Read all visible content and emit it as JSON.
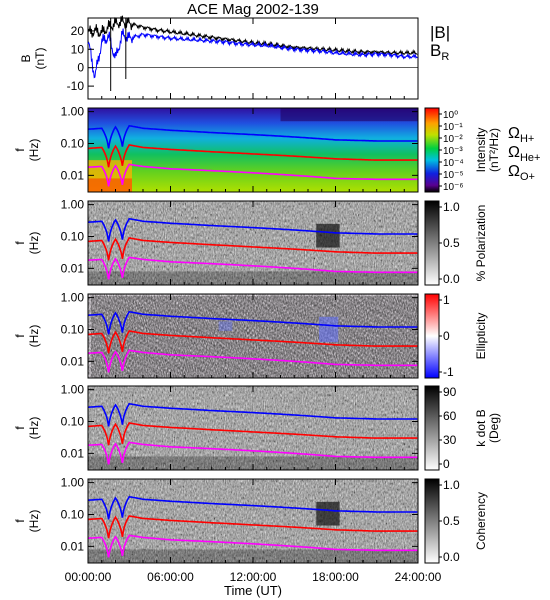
{
  "title": "ACE Mag 2002-139",
  "x_axis": {
    "label": "Time (UT)",
    "ticks": [
      "00:00:00",
      "06:00:00",
      "12:00:00",
      "18:00:00",
      "24:00:00"
    ],
    "tick_hours": [
      0,
      6,
      12,
      18,
      24
    ],
    "range_hours": [
      0,
      24
    ]
  },
  "colors": {
    "B_total": "#000000",
    "B_R": "#0000ff",
    "omega_H": "#0000ff",
    "omega_He": "#ff0000",
    "omega_O": "#ff00ff"
  },
  "legend_B": {
    "total": "|B|",
    "radial": "B",
    "radial_sub": "R"
  },
  "legend_freq": [
    {
      "base": "Ω",
      "sub": "H+",
      "color": "#0000ff"
    },
    {
      "base": "Ω",
      "sub": "He+",
      "color": "#ff0000"
    },
    {
      "base": "Ω",
      "sub": "O+",
      "color": "#ff00ff"
    }
  ],
  "chart_data": [
    {
      "type": "line",
      "panel": "magnetic field",
      "ylabel": "B",
      "yunit": "(nT)",
      "ylim": [
        -17,
        27
      ],
      "yticks": [
        -10,
        0,
        10,
        20
      ],
      "x_hours": [
        0,
        0.5,
        1,
        1.5,
        2,
        2.5,
        3,
        4,
        5,
        6,
        7,
        8,
        9,
        10,
        11,
        12,
        13,
        14,
        15,
        16,
        17,
        18,
        19,
        20,
        21,
        22,
        23,
        24
      ],
      "series": [
        {
          "name": "|B|",
          "color": "#000000",
          "values": [
            19,
            20,
            19,
            22,
            24,
            25,
            24,
            22,
            20.5,
            19.5,
            18.5,
            17.5,
            16.5,
            15.5,
            14.5,
            13.5,
            13,
            12,
            11,
            10.5,
            10,
            9.5,
            9,
            8.5,
            8.5,
            8,
            8,
            8
          ]
        },
        {
          "name": "B_R",
          "color": "#0000ff",
          "values": [
            15,
            -5,
            14,
            17,
            5,
            18,
            16,
            18,
            17,
            16,
            15.5,
            15,
            14.5,
            14,
            13,
            12.5,
            12,
            11,
            10,
            9.5,
            9,
            8,
            7.5,
            7,
            7.5,
            7,
            6,
            6
          ]
        }
      ]
    },
    {
      "type": "heatmap",
      "panel": "power spectrum",
      "ylabel": "f",
      "yunit": "(Hz)",
      "yscale": "log",
      "ylim": [
        0.003,
        1.3
      ],
      "yticks": [
        "1.00",
        "0.10",
        "0.01"
      ],
      "colorbar": {
        "label": "Intensity",
        "unit": "(nT²/Hz)",
        "scale": "rainbow",
        "ticks": [
          "10⁰",
          "10⁻¹",
          "10⁻²",
          "10⁻³",
          "10⁻⁴",
          "10⁻⁵",
          "10⁻⁶"
        ]
      }
    },
    {
      "type": "heatmap",
      "panel": "polarization",
      "ylabel": "f",
      "yunit": "(Hz)",
      "yscale": "log",
      "yticks": [
        "1.00",
        "0.10",
        "0.01"
      ],
      "colorbar": {
        "label": "% Polarization",
        "scale": "gray",
        "ticks": [
          "1.0",
          "0.5",
          "0.0"
        ]
      }
    },
    {
      "type": "heatmap",
      "panel": "ellipticity",
      "ylabel": "f",
      "yunit": "(Hz)",
      "yscale": "log",
      "yticks": [
        "1.00",
        "0.10",
        "0.01"
      ],
      "colorbar": {
        "label": "Ellipticity",
        "scale": "diverging",
        "ticks": [
          "1",
          "0",
          "-1"
        ]
      }
    },
    {
      "type": "heatmap",
      "panel": "wave normal angle",
      "ylabel": "f",
      "yunit": "(Hz)",
      "yscale": "log",
      "yticks": [
        "1.00",
        "0.10",
        "0.01"
      ],
      "colorbar": {
        "label": "k dot B",
        "unit": "(Deg)",
        "scale": "gray",
        "ticks": [
          "90",
          "60",
          "30",
          "0"
        ]
      }
    },
    {
      "type": "heatmap",
      "panel": "coherency",
      "ylabel": "f",
      "yunit": "(Hz)",
      "yscale": "log",
      "yticks": [
        "1.00",
        "0.10",
        "0.01"
      ],
      "colorbar": {
        "label": "Coherency",
        "scale": "gray",
        "ticks": [
          "1.0",
          "0.5",
          "0.0"
        ]
      }
    },
    {
      "type": "line",
      "panel": "gyrofrequency overlays (all spectrogram panels)",
      "yunit": "Hz",
      "x_hours": [
        0,
        1,
        1.5,
        2,
        2.5,
        3,
        4,
        6,
        9,
        12,
        15,
        18,
        21,
        24
      ],
      "series": [
        {
          "name": "ΩH+",
          "color": "#0000ff",
          "values": [
            0.28,
            0.3,
            0.07,
            0.33,
            0.08,
            0.36,
            0.3,
            0.26,
            0.22,
            0.19,
            0.16,
            0.13,
            0.12,
            0.12
          ]
        },
        {
          "name": "ΩHe+",
          "color": "#ff0000",
          "values": [
            0.07,
            0.075,
            0.018,
            0.082,
            0.02,
            0.09,
            0.075,
            0.065,
            0.055,
            0.047,
            0.04,
            0.033,
            0.03,
            0.03
          ]
        },
        {
          "name": "ΩO+",
          "color": "#ff00ff",
          "values": [
            0.018,
            0.019,
            0.0045,
            0.02,
            0.005,
            0.022,
            0.019,
            0.016,
            0.014,
            0.012,
            0.01,
            0.008,
            0.0075,
            0.0075
          ]
        }
      ]
    }
  ]
}
